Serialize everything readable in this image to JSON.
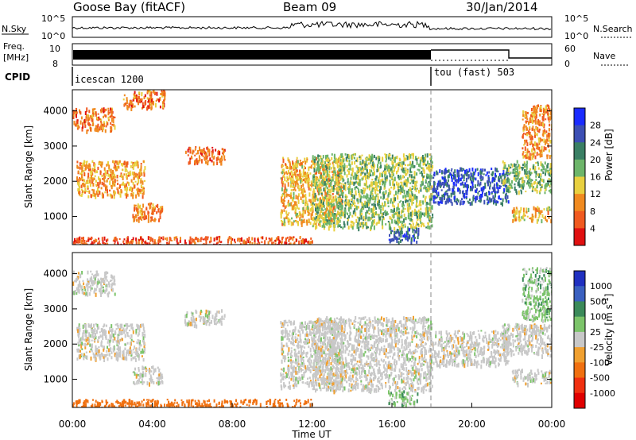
{
  "header": {
    "station": "Goose Bay (fitACF)",
    "beam": "Beam 09",
    "date": "30/Jan/2014"
  },
  "noise": {
    "left_label": "N.Sky",
    "left_ticks": [
      "10^5",
      "10^0"
    ],
    "right_ticks": [
      "10^5",
      "10^0"
    ],
    "right_label": "N.Search"
  },
  "freq": {
    "left_label_1": "Freq.",
    "left_label_2": "[MHz]",
    "left_ticks": [
      "10",
      "8"
    ],
    "right_ticks": [
      "60",
      "0"
    ],
    "right_label": "Nave"
  },
  "cpid": {
    "label": "CPID",
    "segments": [
      {
        "name": "icescan 1200",
        "start_hour": 0
      },
      {
        "name": "tou (fast) 503",
        "start_hour": 18
      }
    ]
  },
  "time_axis": {
    "title": "Time UT",
    "ticks": [
      "00:00",
      "04:00",
      "08:00",
      "12:00",
      "16:00",
      "20:00",
      "00:00"
    ]
  },
  "chart_data": [
    {
      "type": "heatmap",
      "name": "power",
      "ylabel": "Slant Range [km]",
      "x_range_hours": [
        0,
        24
      ],
      "ylim": [
        200,
        4600
      ],
      "y_ticks": [
        1000,
        2000,
        3000,
        4000
      ],
      "colorbar_label": "Power [dB]",
      "colorbar_ticks": [
        "4",
        "8",
        "12",
        "16",
        "20",
        "24",
        "28"
      ],
      "colorbar_colors": [
        "#1a2bff",
        "#3c4fb4",
        "#3a7f64",
        "#6db56a",
        "#e8d040",
        "#f08a20",
        "#f05a20",
        "#e01010"
      ],
      "regions": [
        {
          "t0": 0.0,
          "t1": 2.1,
          "r0": 3450,
          "r1": 4100,
          "val": 8
        },
        {
          "t0": 0.2,
          "t1": 3.6,
          "r0": 1600,
          "r1": 2600,
          "val": 11
        },
        {
          "t0": 2.5,
          "t1": 4.6,
          "r0": 4100,
          "r1": 4600,
          "val": 8
        },
        {
          "t0": 3.0,
          "t1": 4.5,
          "r0": 900,
          "r1": 1400,
          "val": 9
        },
        {
          "t0": 5.6,
          "t1": 7.6,
          "r0": 2550,
          "r1": 3000,
          "val": 7
        },
        {
          "t0": 0.0,
          "t1": 12.0,
          "r0": 200,
          "r1": 450,
          "val": 6
        },
        {
          "t0": 10.4,
          "t1": 13.5,
          "r0": 800,
          "r1": 2700,
          "val": 12
        },
        {
          "t0": 12.0,
          "t1": 18.0,
          "r0": 700,
          "r1": 2800,
          "val": 17
        },
        {
          "t0": 15.8,
          "t1": 17.3,
          "r0": 300,
          "r1": 700,
          "val": 25
        },
        {
          "t0": 18.0,
          "t1": 21.8,
          "r0": 1400,
          "r1": 2400,
          "val": 26
        },
        {
          "t0": 21.5,
          "t1": 24.0,
          "r0": 1700,
          "r1": 2600,
          "val": 18
        },
        {
          "t0": 22.0,
          "t1": 24.0,
          "r0": 900,
          "r1": 1300,
          "val": 12
        },
        {
          "t0": 22.5,
          "t1": 24.0,
          "r0": 2700,
          "r1": 4200,
          "val": 9
        }
      ]
    },
    {
      "type": "heatmap",
      "name": "velocity",
      "ylabel": "Slant Range [km]",
      "x_range_hours": [
        0,
        24
      ],
      "ylim": [
        200,
        4600
      ],
      "y_ticks": [
        1000,
        2000,
        3000,
        4000
      ],
      "colorbar_label": "Velocity [m s-1]",
      "colorbar_ticks": [
        "1000",
        "500",
        "100",
        "25",
        "-25",
        "-100",
        "-500",
        "-1000"
      ],
      "colorbar_colors": [
        "#2030c0",
        "#3a60c0",
        "#3b8a5a",
        "#7cc46a",
        "#c8c8c8",
        "#f0a030",
        "#f07010",
        "#f03010",
        "#e00000"
      ],
      "regions": [
        {
          "t0": 0.0,
          "t1": 2.1,
          "r0": 3450,
          "r1": 4100,
          "val": 0
        },
        {
          "t0": 0.2,
          "t1": 3.6,
          "r0": 1600,
          "r1": 2600,
          "val": 0
        },
        {
          "t0": 3.0,
          "t1": 4.5,
          "r0": 900,
          "r1": 1400,
          "val": 0
        },
        {
          "t0": 5.6,
          "t1": 7.6,
          "r0": 2550,
          "r1": 3000,
          "val": 0
        },
        {
          "t0": 0.0,
          "t1": 12.0,
          "r0": 200,
          "r1": 450,
          "val": -110
        },
        {
          "t0": 10.4,
          "t1": 13.5,
          "r0": 800,
          "r1": 2700,
          "val": 0
        },
        {
          "t0": 12.0,
          "t1": 18.0,
          "r0": 700,
          "r1": 2800,
          "val": 0
        },
        {
          "t0": 15.8,
          "t1": 17.3,
          "r0": 300,
          "r1": 700,
          "val": 40
        },
        {
          "t0": 18.0,
          "t1": 21.8,
          "r0": 1400,
          "r1": 2400,
          "val": 0
        },
        {
          "t0": 21.5,
          "t1": 24.0,
          "r0": 1700,
          "r1": 2600,
          "val": 0
        },
        {
          "t0": 22.0,
          "t1": 24.0,
          "r0": 900,
          "r1": 1300,
          "val": 0
        },
        {
          "t0": 22.5,
          "t1": 24.0,
          "r0": 2700,
          "r1": 4200,
          "val": 40
        }
      ]
    }
  ]
}
